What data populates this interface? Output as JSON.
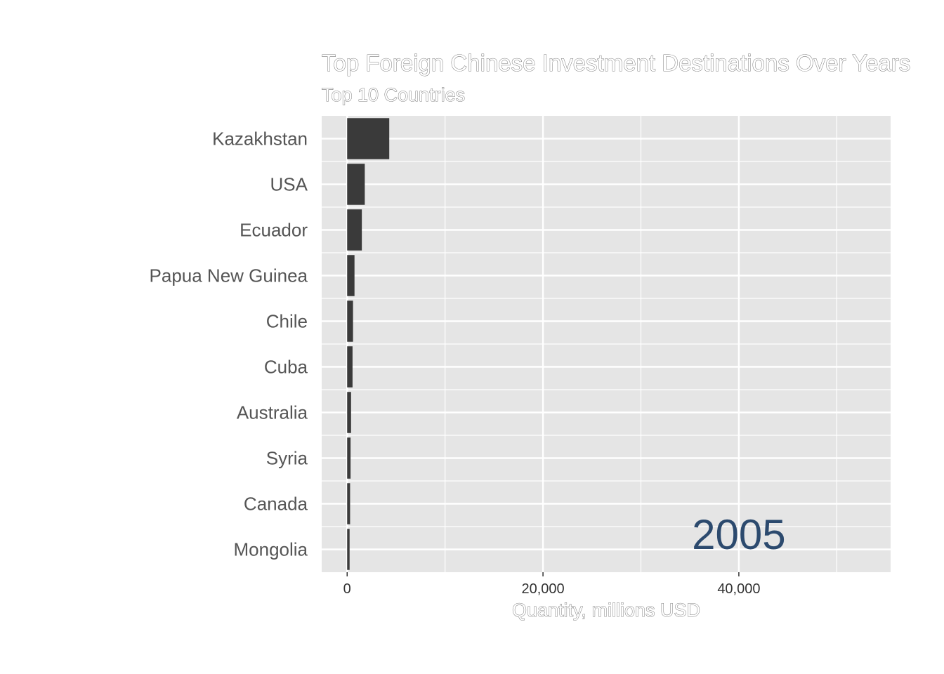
{
  "chart_data": {
    "type": "bar",
    "orientation": "horizontal",
    "title": "Top Foreign Chinese Investment Destinations Over Years",
    "subtitle": "Top 10 Countries",
    "xlabel": "Quantity, millions USD",
    "ylabel": "",
    "year": "2005",
    "categories": [
      "Kazakhstan",
      "USA",
      "Ecuador",
      "Papua New Guinea",
      "Chile",
      "Cuba",
      "Australia",
      "Syria",
      "Canada",
      "Mongolia"
    ],
    "values": [
      4300,
      1800,
      1500,
      750,
      600,
      550,
      400,
      350,
      300,
      250
    ],
    "xlim": [
      -2600,
      55500
    ],
    "xticks": [
      0,
      20000,
      40000
    ],
    "xtick_labels": [
      "0",
      "20,000",
      "40,000"
    ],
    "grid": true,
    "colors": {
      "bar": "#3a3a3a",
      "panel": "#e5e5e5",
      "grid": "#ffffff",
      "year": "#2c4a6e"
    }
  }
}
